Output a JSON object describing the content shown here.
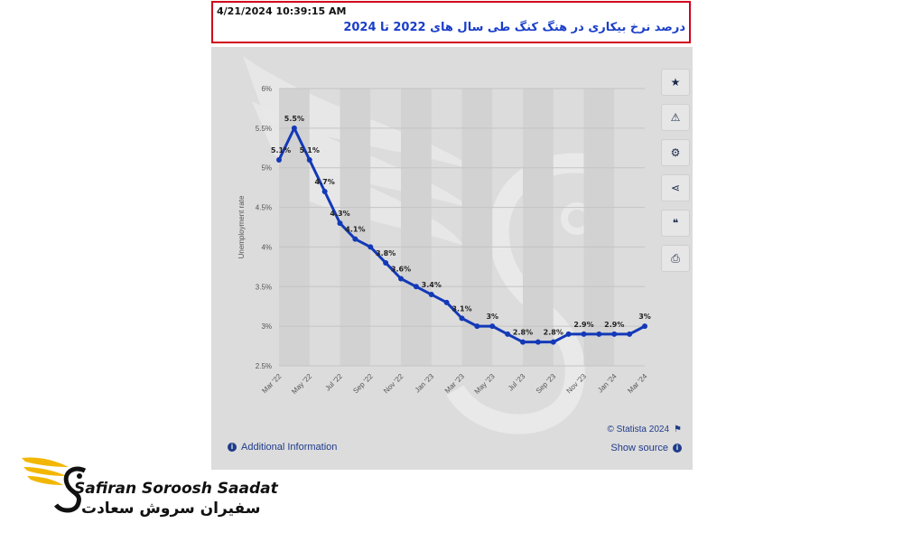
{
  "header": {
    "timestamp": "4/21/2024 10:39:15 AM",
    "title": "درصد نرخ بیکاری در هنگ کنگ طی سال های 2022 تا 2024"
  },
  "sidebar_buttons": [
    {
      "icon": "star-icon",
      "glyph": "★"
    },
    {
      "icon": "bell-icon",
      "glyph": "🔔"
    },
    {
      "icon": "gear-icon",
      "glyph": "⚙"
    },
    {
      "icon": "share-icon",
      "glyph": "⋖"
    },
    {
      "icon": "quote-icon",
      "glyph": "❝"
    },
    {
      "icon": "print-icon",
      "glyph": "⎙"
    }
  ],
  "footer": {
    "additional_info": "Additional Information",
    "credit": "© Statista 2024",
    "show_source": "Show source"
  },
  "brand": {
    "name_en": "Safiran Soroosh Saadat",
    "name_fa": "سفیران سروش سعادت"
  },
  "colors": {
    "line": "#1339b8",
    "panel_bg": "#dcdcdc",
    "header_border": "#d0021b",
    "title": "#1a3ec9",
    "brand_gold": "#f2b705"
  },
  "chart_data": {
    "type": "line",
    "ylabel": "Unemployment rate",
    "ylim": [
      2.5,
      6
    ],
    "yticks": [
      {
        "value": 2.5,
        "label": "2.5%"
      },
      {
        "value": 3,
        "label": "3%"
      },
      {
        "value": 3.5,
        "label": "3.5%"
      },
      {
        "value": 4,
        "label": "4%"
      },
      {
        "value": 4.5,
        "label": "4.5%"
      },
      {
        "value": 5,
        "label": "5%"
      },
      {
        "value": 5.5,
        "label": "5.5%"
      },
      {
        "value": 6,
        "label": "6%"
      }
    ],
    "xticks": [
      {
        "index": 0,
        "label": "Mar '22"
      },
      {
        "index": 2,
        "label": "May '22"
      },
      {
        "index": 4,
        "label": "Jul '22"
      },
      {
        "index": 6,
        "label": "Sep '22"
      },
      {
        "index": 8,
        "label": "Nov '22"
      },
      {
        "index": 10,
        "label": "Jan '23"
      },
      {
        "index": 12,
        "label": "Mar '23"
      },
      {
        "index": 14,
        "label": "May '23"
      },
      {
        "index": 16,
        "label": "Jul '23"
      },
      {
        "index": 18,
        "label": "Sep '23"
      },
      {
        "index": 20,
        "label": "Nov '23"
      },
      {
        "index": 22,
        "label": "Jan '24"
      },
      {
        "index": 24,
        "label": "Mar '24"
      }
    ],
    "x": [
      "Mar 22",
      "Apr 22",
      "May 22",
      "Jun 22",
      "Jul 22",
      "Aug 22",
      "Sep 22",
      "Oct 22",
      "Nov 22",
      "Dec 22",
      "Jan 23",
      "Feb 23",
      "Mar 23",
      "Apr 23",
      "May 23",
      "Jun 23",
      "Jul 23",
      "Aug 23",
      "Sep 23",
      "Oct 23",
      "Nov 23",
      "Dec 23",
      "Jan 24",
      "Feb 24",
      "Mar 24"
    ],
    "values": [
      5.1,
      5.5,
      5.1,
      4.7,
      4.3,
      4.1,
      4.0,
      3.8,
      3.6,
      3.5,
      3.4,
      3.3,
      3.1,
      3.0,
      3.0,
      2.9,
      2.8,
      2.8,
      2.8,
      2.9,
      2.9,
      2.9,
      2.9,
      2.9,
      3.0
    ],
    "labels": [
      {
        "index": 0,
        "text": "5.1%"
      },
      {
        "index": 1,
        "text": "5.5%"
      },
      {
        "index": 2,
        "text": "5.1%"
      },
      {
        "index": 3,
        "text": "4.7%"
      },
      {
        "index": 4,
        "text": "4.3%"
      },
      {
        "index": 5,
        "text": "4.1%"
      },
      {
        "index": 7,
        "text": "3.8%"
      },
      {
        "index": 8,
        "text": "3.6%"
      },
      {
        "index": 10,
        "text": "3.4%"
      },
      {
        "index": 12,
        "text": "3.1%"
      },
      {
        "index": 14,
        "text": "3%"
      },
      {
        "index": 16,
        "text": "2.8%"
      },
      {
        "index": 18,
        "text": "2.8%"
      },
      {
        "index": 20,
        "text": "2.9%"
      },
      {
        "index": 22,
        "text": "2.9%"
      },
      {
        "index": 24,
        "text": "3%"
      }
    ],
    "grid": true
  }
}
